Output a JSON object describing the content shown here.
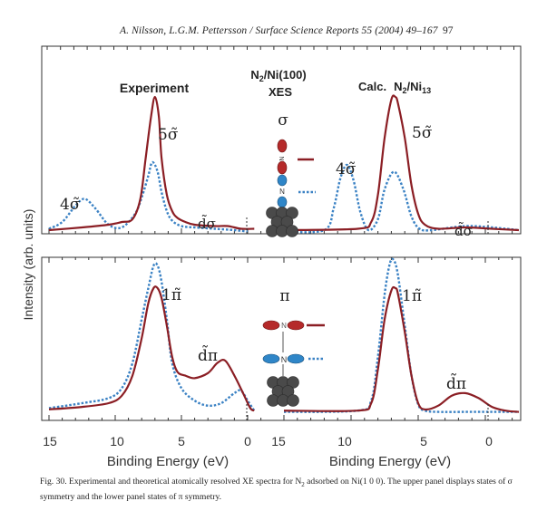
{
  "page": {
    "running_head": "A. Nilsson, L.G.M. Pettersson / Surface Science Reports 55 (2004) 49–167",
    "page_number": "97"
  },
  "figure": {
    "ylabel": "Intensity (arb. units)",
    "xlabel_left": "Binding Energy (eV)",
    "xlabel_right": "Binding Energy (eV)",
    "left_title": "Experiment",
    "right_title_prefix": "Calc.",
    "right_title_main": "N",
    "right_title_sub2": "2",
    "right_title_slash": "/Ni",
    "right_title_sub13": "13",
    "center_title_n": "N",
    "center_title_sub": "2",
    "center_title_rest": "/Ni(100)",
    "center_subtitle": "XES",
    "sigma_symbol": "σ",
    "pi_symbol": "π",
    "atom_label_N": "N",
    "x_ticks_left": [
      "15",
      "10",
      "5",
      "0"
    ],
    "x_ticks_right": [
      "15",
      "10",
      "5",
      "0"
    ],
    "peak_labels": {
      "exp_sigma_4": "4σ̃",
      "exp_sigma_5": "5σ̃",
      "exp_sigma_d": "d̃σ",
      "exp_pi_1": "1π̃",
      "exp_pi_d": "d̃π",
      "calc_sigma_4": "4σ̃",
      "calc_sigma_5": "5σ̃",
      "calc_sigma_d": "d̃σ",
      "calc_pi_1": "1π̃",
      "calc_pi_d": "d̃π"
    },
    "colors": {
      "solid_line": "#8b1e24",
      "dotted_line": "#3b82c4",
      "atom_red": "#b52a2a",
      "atom_blue": "#2f86c8",
      "ni_atom": "#4a4a4a",
      "axis": "#333333"
    }
  },
  "chart_data": [
    {
      "type": "line",
      "title": "Experiment — σ symmetry (upper-left)",
      "xlabel": "Binding Energy (eV)",
      "ylabel": "Intensity (arb. units)",
      "xlim": [
        15.5,
        0
      ],
      "legend": "solid = outer N atom (red), dotted = inner N atom (blue)",
      "series": [
        {
          "name": "outer N (solid)",
          "x": [
            15.5,
            13,
            11,
            10,
            9.2,
            8.6,
            8.2,
            7.8,
            7.5,
            7.2,
            7.0,
            6.6,
            6.2,
            5.8,
            5.2,
            4.5,
            3,
            2,
            1,
            0
          ],
          "y": [
            0.02,
            0.04,
            0.06,
            0.08,
            0.1,
            0.25,
            0.55,
            0.85,
            1.0,
            0.85,
            0.55,
            0.28,
            0.16,
            0.11,
            0.08,
            0.06,
            0.05,
            0.05,
            0.03,
            0.03
          ]
        },
        {
          "name": "inner N (dotted)",
          "x": [
            15.5,
            14.5,
            13.5,
            12.8,
            12,
            11,
            10,
            9,
            8.5,
            8.0,
            7.7,
            7.3,
            7.0,
            6.6,
            6.2,
            5.5,
            4.5,
            3,
            1.5,
            0.5
          ],
          "y": [
            0.03,
            0.08,
            0.2,
            0.25,
            0.18,
            0.06,
            0.04,
            0.14,
            0.26,
            0.42,
            0.52,
            0.45,
            0.3,
            0.16,
            0.09,
            0.05,
            0.04,
            0.03,
            0.02,
            0.01
          ]
        }
      ],
      "annotations": [
        "4σ̃ at ~12.5 eV",
        "5σ̃ at ~7.5 eV",
        "d̃σ near ~3 eV"
      ]
    },
    {
      "type": "line",
      "title": "Calc. N2/Ni13 — σ symmetry (upper-right)",
      "xlabel": "Binding Energy (eV)",
      "xlim": [
        15.5,
        -2
      ],
      "series": [
        {
          "name": "outer N (solid)",
          "x": [
            15.5,
            10,
            9,
            8.5,
            8,
            7.5,
            7.2,
            7,
            6.5,
            6,
            5.5,
            5,
            4,
            2,
            0,
            -2
          ],
          "y": [
            0.02,
            0.03,
            0.08,
            0.28,
            0.7,
            0.98,
            1.0,
            0.95,
            0.7,
            0.35,
            0.14,
            0.06,
            0.03,
            0.04,
            0.03,
            0.02
          ]
        },
        {
          "name": "inner N (dotted)",
          "x": [
            15.5,
            12.5,
            11.8,
            11.3,
            10.8,
            10.3,
            9.8,
            9.2,
            8.5,
            8.0,
            7.3,
            6.6,
            6.0,
            5.4,
            4.5,
            2,
            0,
            -2
          ],
          "y": [
            0.01,
            0.02,
            0.18,
            0.4,
            0.5,
            0.38,
            0.15,
            0.02,
            0.1,
            0.32,
            0.45,
            0.32,
            0.12,
            0.03,
            0.02,
            0.05,
            0.04,
            0.02
          ]
        }
      ],
      "annotations": [
        "4σ̃ at ~10.7 eV",
        "5σ̃ at ~7.2 eV",
        "d̃σ near ~2 eV"
      ]
    },
    {
      "type": "line",
      "title": "Experiment — π symmetry (lower-left)",
      "xlabel": "Binding Energy (eV)",
      "xlim": [
        15.5,
        0
      ],
      "series": [
        {
          "name": "outer N (solid)",
          "x": [
            15.5,
            13,
            11,
            10,
            9.2,
            8.5,
            8.0,
            7.6,
            7.3,
            7.0,
            6.6,
            6.2,
            5.8,
            5.2,
            4.5,
            3.5,
            2.8,
            2.2,
            1.5,
            0.8,
            0.3,
            0
          ],
          "y": [
            0.03,
            0.05,
            0.08,
            0.14,
            0.3,
            0.6,
            0.88,
            1.0,
            1.0,
            0.92,
            0.7,
            0.45,
            0.33,
            0.3,
            0.28,
            0.32,
            0.4,
            0.42,
            0.3,
            0.15,
            0.04,
            0.02
          ]
        },
        {
          "name": "inner N (dotted)",
          "x": [
            15.5,
            13,
            11,
            10,
            9.2,
            8.5,
            8.0,
            7.6,
            7.3,
            7.0,
            6.6,
            6.2,
            5.5,
            4.5,
            3.5,
            2.5,
            1.5,
            1.0,
            0.5,
            0
          ],
          "y": [
            0.04,
            0.08,
            0.12,
            0.2,
            0.4,
            0.75,
            1.0,
            1.18,
            1.18,
            1.05,
            0.75,
            0.4,
            0.2,
            0.1,
            0.06,
            0.08,
            0.16,
            0.18,
            0.1,
            0.02
          ]
        }
      ],
      "annotations": [
        "1π̃ at ~7.3 eV",
        "d̃π near ~2.5 eV"
      ]
    },
    {
      "type": "line",
      "title": "Calc. N2/Ni13 — π symmetry (lower-right)",
      "xlabel": "Binding Energy (eV)",
      "xlim": [
        15.5,
        -2
      ],
      "series": [
        {
          "name": "outer N (solid)",
          "x": [
            15.5,
            10,
            9,
            8.5,
            8,
            7.5,
            7.2,
            7,
            6.5,
            6,
            5.5,
            5,
            4,
            3,
            2,
            1,
            0,
            -1,
            -2
          ],
          "y": [
            0.02,
            0.02,
            0.08,
            0.35,
            0.75,
            0.98,
            1.0,
            0.95,
            0.65,
            0.3,
            0.08,
            0.03,
            0.06,
            0.14,
            0.16,
            0.12,
            0.05,
            0.02,
            0.01
          ]
        },
        {
          "name": "inner N (dotted)",
          "x": [
            15.5,
            10,
            9,
            8.5,
            8,
            7.6,
            7.3,
            7,
            6.5,
            6,
            5.5,
            5,
            4,
            2,
            0,
            -2
          ],
          "y": [
            0.01,
            0.02,
            0.1,
            0.45,
            0.95,
            1.2,
            1.22,
            1.1,
            0.7,
            0.3,
            0.07,
            0.02,
            0.01,
            0.01,
            0.01,
            0.01
          ]
        }
      ],
      "annotations": [
        "1π̃ at ~7.3 eV",
        "d̃π near ~2 eV"
      ]
    }
  ],
  "caption": {
    "label": "Fig. 30.",
    "text_a": " Experimental and theoretical atomically resolved XE spectra for N",
    "sub": "2",
    "text_b": " adsorbed on Ni(1 0 0). The upper panel displays states of σ symmetry and the lower panel states of π symmetry."
  }
}
